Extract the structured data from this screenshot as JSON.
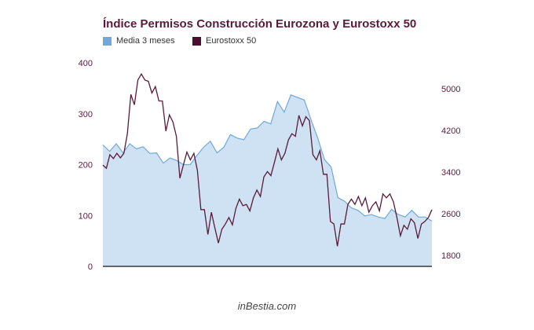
{
  "chart_data": {
    "type": "line",
    "title": "Índice Permisos Construcción Eurozona y Eurostoxx 50",
    "legend_placement": "top-left",
    "grid": false,
    "left_axis": {
      "ticks": [
        "0",
        "100",
        "200",
        "300",
        "400"
      ],
      "tick_values": [
        0,
        100,
        200,
        300,
        400
      ],
      "ylim": [
        0,
        400
      ]
    },
    "right_axis": {
      "ticks": [
        "1800",
        "2600",
        "3400",
        "4200",
        "5000"
      ],
      "tick_values": [
        1800,
        2600,
        3400,
        4200,
        5000
      ],
      "ylim": [
        1590,
        5500
      ]
    },
    "series": [
      {
        "name": "Media 3 meses",
        "type": "area",
        "axis": "left",
        "color": "#6fa8dc",
        "fill": "#cfe2f3",
        "values": [
          239,
          226,
          241,
          223,
          241,
          231,
          235,
          222,
          223,
          203,
          213,
          208,
          200,
          200,
          218,
          234,
          246,
          223,
          234,
          259,
          252,
          249,
          270,
          272,
          285,
          280,
          324,
          303,
          337,
          332,
          327,
          288,
          252,
          210,
          195,
          135,
          128,
          115,
          110,
          99,
          102,
          97,
          94,
          112,
          102,
          97,
          110,
          97,
          97,
          89
        ]
      },
      {
        "name": "Eurostoxx 50",
        "type": "line",
        "axis": "right",
        "color": "#5a1a3a",
        "values": [
          3536,
          3475,
          3736,
          3661,
          3762,
          3675,
          3762,
          4139,
          4894,
          4693,
          5170,
          5286,
          5170,
          5145,
          4919,
          5044,
          4768,
          4768,
          4189,
          4501,
          4366,
          4089,
          3284,
          3536,
          3787,
          3636,
          3762,
          3434,
          2680,
          2680,
          2203,
          2630,
          2328,
          2037,
          2303,
          2404,
          2529,
          2389,
          2705,
          2882,
          2755,
          2780,
          2655,
          2906,
          3057,
          2932,
          3309,
          3410,
          3334,
          3585,
          3848,
          3636,
          3762,
          4018,
          4139,
          4089,
          4491,
          4290,
          4466,
          4390,
          3736,
          3636,
          3812,
          3359,
          3359,
          2453,
          2404,
          1977,
          2404,
          2404,
          2780,
          2882,
          2780,
          2932,
          2755,
          2906,
          2630,
          2755,
          2830,
          2655,
          2982,
          2906,
          2982,
          2830,
          2529,
          2177,
          2379,
          2303,
          2504,
          2429,
          2127,
          2404,
          2454,
          2529,
          2680
        ]
      }
    ]
  },
  "footer": "inBestia.com"
}
